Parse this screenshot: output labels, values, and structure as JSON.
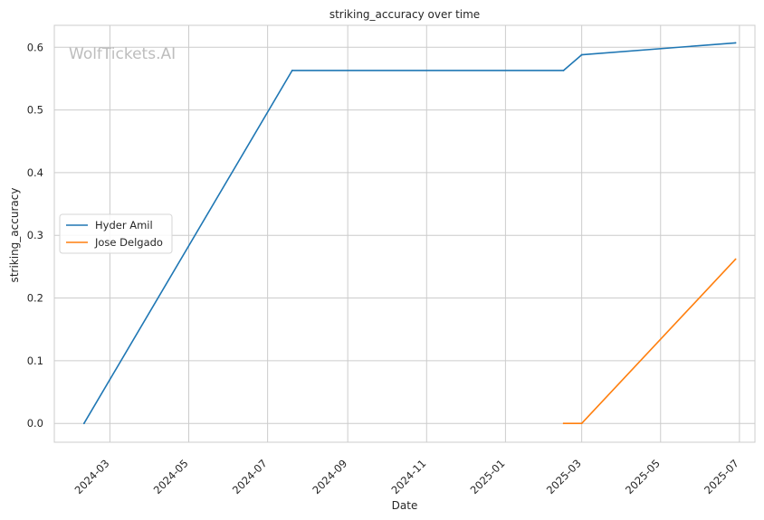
{
  "chart_data": {
    "type": "line",
    "title": "striking_accuracy over time",
    "xlabel": "Date",
    "ylabel": "striking_accuracy",
    "watermark": "WolfTickets.AI",
    "x_ticks": [
      "2024-03",
      "2024-05",
      "2024-07",
      "2024-09",
      "2024-11",
      "2025-01",
      "2025-03",
      "2025-05",
      "2025-07"
    ],
    "y_ticks": [
      "0.0",
      "0.1",
      "0.2",
      "0.3",
      "0.4",
      "0.5",
      "0.6"
    ],
    "xlim": [
      "2024-01-18",
      "2025-07-13"
    ],
    "ylim": [
      -0.03,
      0.635
    ],
    "grid": true,
    "legend_position": "center-left",
    "series": [
      {
        "name": "Hyder Amil",
        "color": "#1f77b4",
        "points": [
          {
            "x": "2024-02-10",
            "y": 0.0
          },
          {
            "x": "2024-07-20",
            "y": 0.563
          },
          {
            "x": "2025-02-15",
            "y": 0.563
          },
          {
            "x": "2025-03-01",
            "y": 0.588
          },
          {
            "x": "2025-06-28",
            "y": 0.607
          }
        ]
      },
      {
        "name": "Jose Delgado",
        "color": "#ff7f0e",
        "points": [
          {
            "x": "2025-02-15",
            "y": 0.0
          },
          {
            "x": "2025-03-01",
            "y": 0.0
          },
          {
            "x": "2025-06-28",
            "y": 0.262
          }
        ]
      }
    ]
  }
}
